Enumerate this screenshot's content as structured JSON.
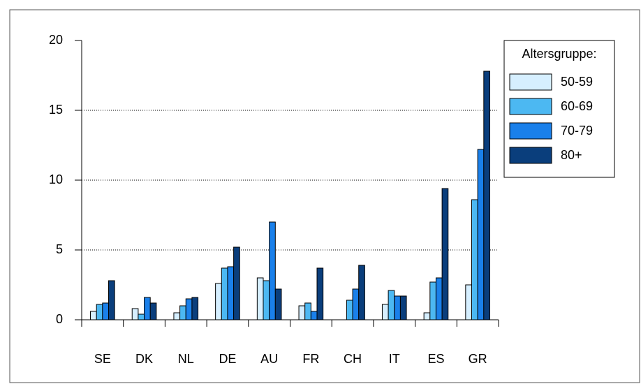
{
  "chart_data": {
    "type": "bar",
    "categories": [
      "SE",
      "DK",
      "NL",
      "DE",
      "AU",
      "FR",
      "CH",
      "IT",
      "ES",
      "GR"
    ],
    "series": [
      {
        "name": "50-59",
        "color": "#d6efff",
        "values": [
          0.6,
          0.8,
          0.5,
          2.6,
          3.0,
          1.0,
          0,
          1.1,
          0.5,
          2.5
        ]
      },
      {
        "name": "60-69",
        "color": "#4cb8f2",
        "values": [
          1.1,
          0.4,
          1.0,
          3.7,
          2.8,
          1.2,
          1.4,
          2.1,
          2.7,
          8.6
        ]
      },
      {
        "name": "70-79",
        "color": "#1a80ea",
        "values": [
          1.2,
          1.6,
          1.5,
          3.8,
          7.0,
          0.6,
          2.2,
          1.7,
          3.0,
          12.2
        ]
      },
      {
        "name": "80+",
        "color": "#0a3e7c",
        "values": [
          2.8,
          1.2,
          1.6,
          5.2,
          2.2,
          3.7,
          3.9,
          1.7,
          9.4,
          17.8
        ]
      }
    ],
    "legend_title": "Altersgruppe:",
    "legend": "right",
    "ylim": [
      0,
      20
    ],
    "yticks": [
      0,
      5,
      10,
      15,
      20
    ],
    "grid": true
  }
}
